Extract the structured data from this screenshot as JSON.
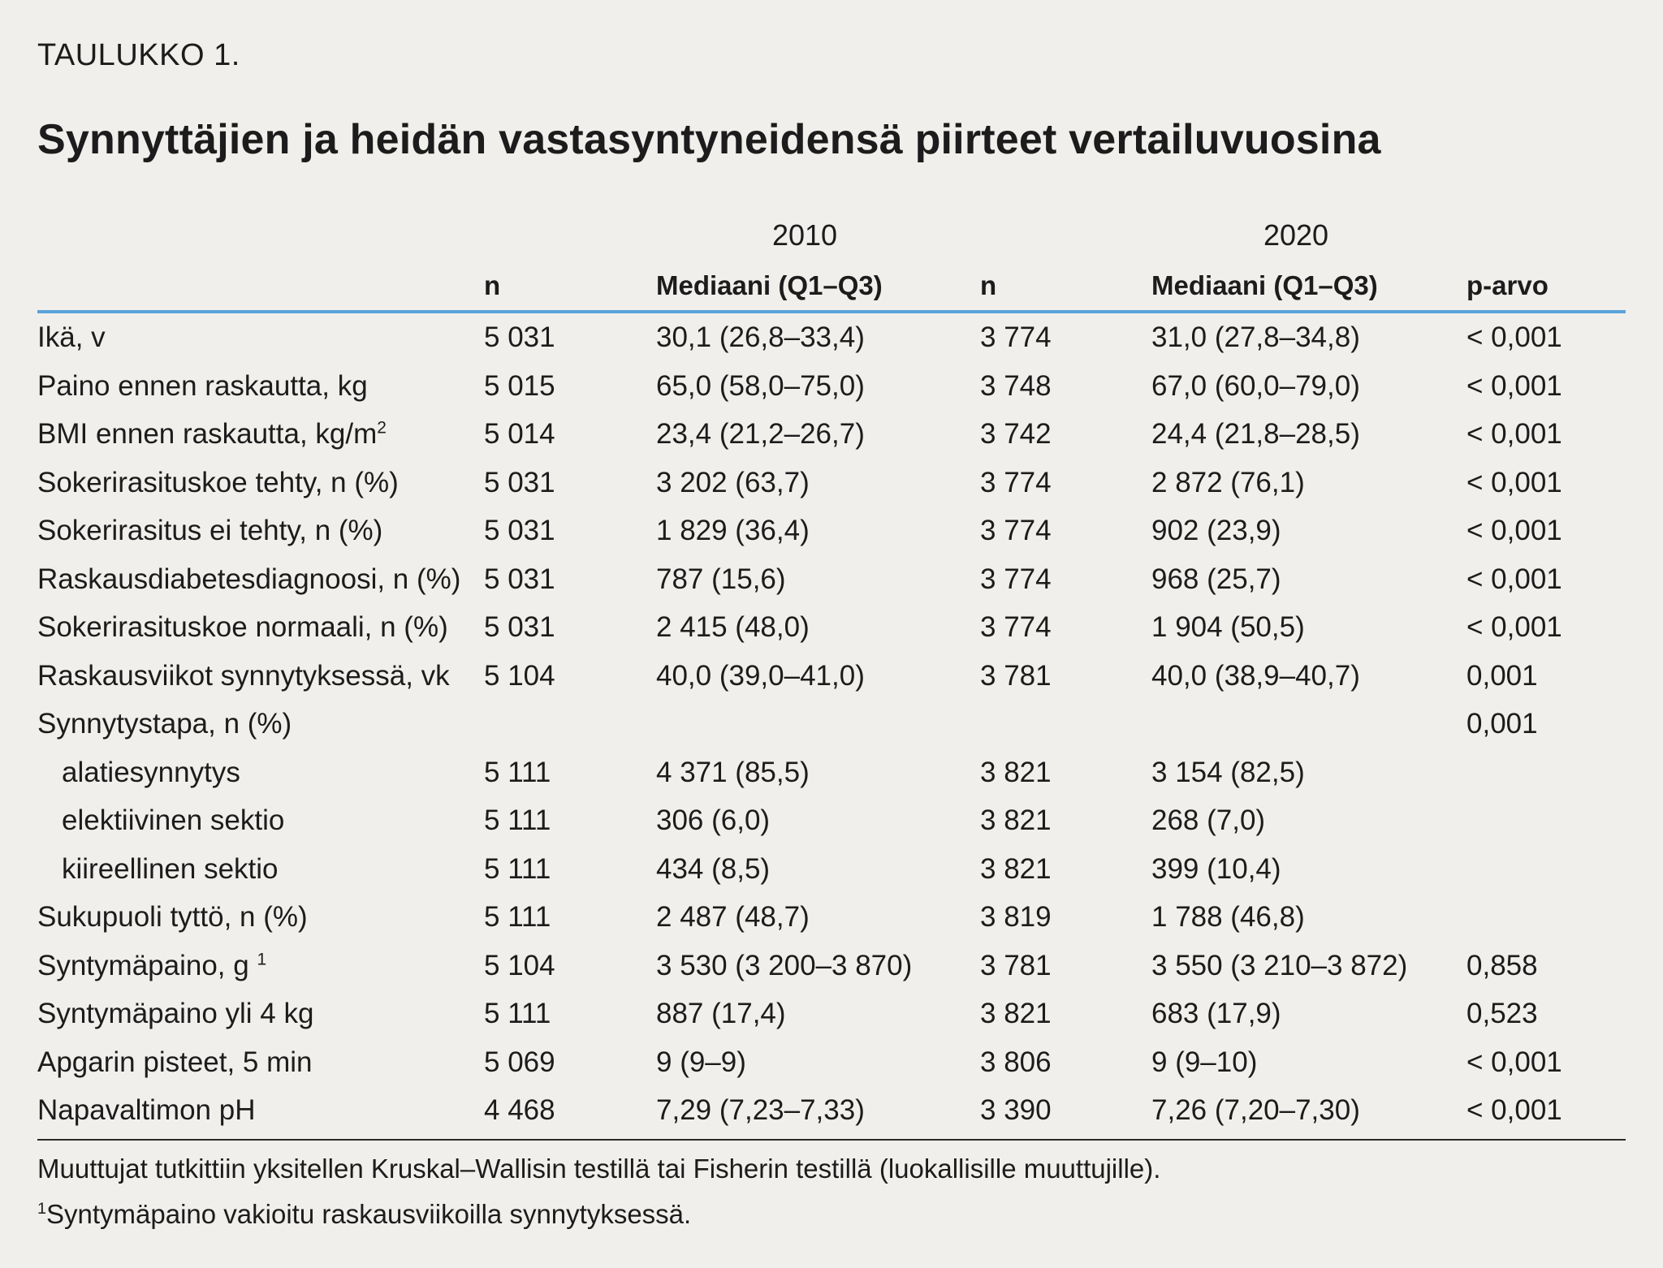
{
  "table_label": "TAULUKKO 1.",
  "title": "Synnyttäjien ja heidän vastasyntyneidensä piirteet vertailuvuosina",
  "year_a": "2010",
  "year_b": "2020",
  "headers": {
    "n1": "n",
    "median1": "Mediaani (Q1–Q3)",
    "n2": "n",
    "median2": "Mediaani (Q1–Q3)",
    "p": "p-arvo"
  },
  "rows": [
    {
      "label": "Ikä, v",
      "sup": "",
      "n1": "5 031",
      "m1": "30,1 (26,8–33,4)",
      "n2": "3 774",
      "m2": "31,0 (27,8–34,8)",
      "p": "< 0,001"
    },
    {
      "label": "Paino ennen raskautta, kg",
      "sup": "",
      "n1": "5 015",
      "m1": "65,0 (58,0–75,0)",
      "n2": "3 748",
      "m2": "67,0 (60,0–79,0)",
      "p": "< 0,001"
    },
    {
      "label": "BMI ennen raskautta, kg/m",
      "sup": "2",
      "n1": "5 014",
      "m1": "23,4 (21,2–26,7)",
      "n2": "3 742",
      "m2": "24,4 (21,8–28,5)",
      "p": "< 0,001"
    },
    {
      "label": "Sokerirasituskoe tehty, n (%)",
      "sup": "",
      "n1": "5 031",
      "m1": "3 202 (63,7)",
      "n2": "3 774",
      "m2": "2 872 (76,1)",
      "p": "< 0,001"
    },
    {
      "label": "Sokerirasitus ei tehty, n (%)",
      "sup": "",
      "n1": "5 031",
      "m1": "1 829 (36,4)",
      "n2": "3 774",
      "m2": "902 (23,9)",
      "p": "< 0,001"
    },
    {
      "label": "Raskausdiabetesdiagnoosi, n (%)",
      "sup": "",
      "n1": "5 031",
      "m1": "787 (15,6)",
      "n2": "3 774",
      "m2": "968 (25,7)",
      "p": "< 0,001"
    },
    {
      "label": "Sokerirasituskoe normaali, n (%)",
      "sup": "",
      "n1": "5 031",
      "m1": "2 415 (48,0)",
      "n2": "3 774",
      "m2": "1 904 (50,5)",
      "p": "< 0,001"
    },
    {
      "label": "Raskausviikot synnytyksessä, vk",
      "sup": "",
      "n1": "5 104",
      "m1": "40,0 (39,0–41,0)",
      "n2": "3 781",
      "m2": "40,0 (38,9–40,7)",
      "p": "0,001"
    },
    {
      "label": "Synnytystapa, n (%)",
      "sup": "",
      "n1": "",
      "m1": "",
      "n2": "",
      "m2": "",
      "p": "0,001"
    },
    {
      "label": "alatiesynnytys",
      "sup": "",
      "indent": true,
      "n1": "5 111",
      "m1": "4 371 (85,5)",
      "n2": "3 821",
      "m2": "3 154 (82,5)",
      "p": ""
    },
    {
      "label": "elektiivinen sektio",
      "sup": "",
      "indent": true,
      "n1": "5 111",
      "m1": "306 (6,0)",
      "n2": "3 821",
      "m2": "268 (7,0)",
      "p": ""
    },
    {
      "label": "kiireellinen sektio",
      "sup": "",
      "indent": true,
      "n1": "5 111",
      "m1": "434 (8,5)",
      "n2": "3 821",
      "m2": "399 (10,4)",
      "p": ""
    },
    {
      "label": "Sukupuoli tyttö, n (%)",
      "sup": "",
      "n1": "5 111",
      "m1": "2 487 (48,7)",
      "n2": "3 819",
      "m2": "1 788 (46,8)",
      "p": ""
    },
    {
      "label": "Syntymäpaino, g ",
      "sup": "1",
      "n1": "5 104",
      "m1": "3 530 (3 200–3 870)",
      "n2": "3 781",
      "m2": "3 550 (3 210–3 872)",
      "p": "0,858"
    },
    {
      "label": "Syntymäpaino yli 4 kg",
      "sup": "",
      "n1": "5 111",
      "m1": "887 (17,4)",
      "n2": "3 821",
      "m2": "683 (17,9)",
      "p": "0,523"
    },
    {
      "label": "Apgarin pisteet, 5 min",
      "sup": "",
      "n1": "5 069",
      "m1": "9 (9–9)",
      "n2": "3 806",
      "m2": "9 (9–10)",
      "p": "< 0,001"
    },
    {
      "label": "Napavaltimon pH",
      "sup": "",
      "n1": "4 468",
      "m1": "7,29 (7,23–7,33)",
      "n2": "3 390",
      "m2": "7,26 (7,20–7,30)",
      "p": "< 0,001"
    }
  ],
  "footnote_main": "Muuttujat tutkittiin yksitellen Kruskal–Wallisin testillä tai Fisherin testillä (luokallisille muuttujille).",
  "footnote_1_marker": "1",
  "footnote_1_text": "Syntymäpaino vakioitu raskausviikoilla synnytyksessä."
}
